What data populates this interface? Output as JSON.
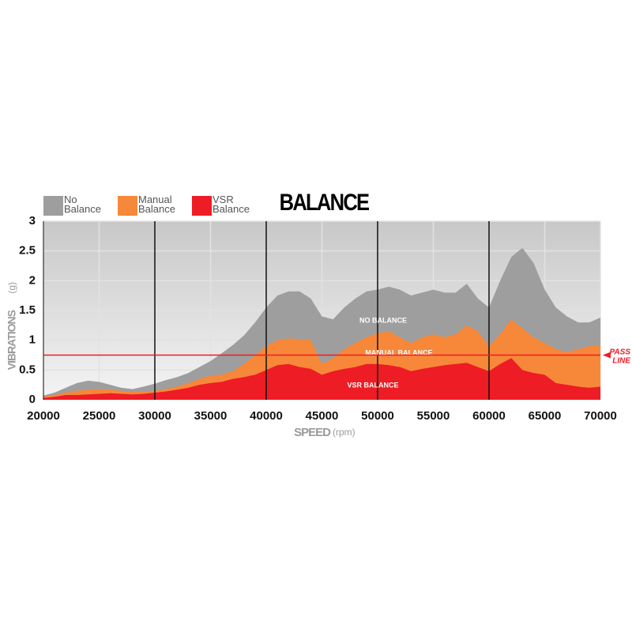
{
  "chart_data": {
    "type": "area",
    "title": "BALANCE",
    "x_label": "SPEED",
    "x_label_unit": "(rpm)",
    "y_label": "VIBRATIONS",
    "y_label_unit": "(g)",
    "x": [
      20000,
      21000,
      22000,
      23000,
      24000,
      25000,
      26000,
      27000,
      28000,
      29000,
      30000,
      31000,
      32000,
      33000,
      34000,
      35000,
      36000,
      37000,
      38000,
      39000,
      40000,
      41000,
      42000,
      43000,
      44000,
      45000,
      46000,
      47000,
      48000,
      49000,
      50000,
      51000,
      52000,
      53000,
      54000,
      55000,
      56000,
      57000,
      58000,
      59000,
      60000,
      61000,
      62000,
      63000,
      64000,
      65000,
      66000,
      67000,
      68000,
      69000,
      70000
    ],
    "series": [
      {
        "name": "No Balance",
        "color": "#9e9e9e",
        "values": [
          0.07,
          0.12,
          0.2,
          0.28,
          0.32,
          0.3,
          0.25,
          0.2,
          0.18,
          0.22,
          0.27,
          0.33,
          0.38,
          0.45,
          0.55,
          0.65,
          0.78,
          0.92,
          1.08,
          1.3,
          1.55,
          1.75,
          1.82,
          1.82,
          1.7,
          1.4,
          1.35,
          1.55,
          1.7,
          1.82,
          1.85,
          1.9,
          1.85,
          1.75,
          1.8,
          1.85,
          1.8,
          1.8,
          1.95,
          1.7,
          1.55,
          2.0,
          2.4,
          2.55,
          2.3,
          1.85,
          1.55,
          1.4,
          1.3,
          1.3,
          1.38
        ]
      },
      {
        "name": "Manual Balance",
        "color": "#f7883a",
        "values": [
          0.05,
          0.08,
          0.12,
          0.15,
          0.17,
          0.18,
          0.17,
          0.15,
          0.13,
          0.14,
          0.15,
          0.18,
          0.22,
          0.28,
          0.35,
          0.4,
          0.42,
          0.48,
          0.6,
          0.75,
          0.9,
          1.0,
          1.03,
          1.02,
          1.0,
          0.6,
          0.7,
          0.85,
          0.95,
          1.05,
          1.12,
          1.15,
          1.05,
          0.95,
          1.05,
          1.1,
          1.05,
          1.1,
          1.25,
          1.15,
          0.9,
          1.1,
          1.35,
          1.2,
          1.05,
          0.95,
          0.85,
          0.8,
          0.85,
          0.9,
          0.92
        ]
      },
      {
        "name": "VSR Balance",
        "color": "#ee1c25",
        "values": [
          0.03,
          0.05,
          0.08,
          0.08,
          0.09,
          0.1,
          0.11,
          0.1,
          0.09,
          0.1,
          0.12,
          0.14,
          0.17,
          0.2,
          0.25,
          0.28,
          0.3,
          0.35,
          0.38,
          0.42,
          0.5,
          0.58,
          0.6,
          0.55,
          0.52,
          0.42,
          0.48,
          0.52,
          0.55,
          0.6,
          0.6,
          0.58,
          0.55,
          0.48,
          0.52,
          0.55,
          0.58,
          0.6,
          0.62,
          0.55,
          0.48,
          0.6,
          0.7,
          0.5,
          0.45,
          0.42,
          0.28,
          0.25,
          0.22,
          0.2,
          0.22
        ]
      }
    ],
    "annotations": [
      "NO BALANCE",
      "MANUAL BALANCE",
      "VSR BALANCE"
    ],
    "pass_line": {
      "value": 0.75,
      "label": "PASS LINE",
      "color": "#ee1c25"
    },
    "xlim": [
      20000,
      70000
    ],
    "ylim": [
      0,
      3
    ],
    "xticks": [
      20000,
      25000,
      30000,
      35000,
      40000,
      45000,
      50000,
      55000,
      60000,
      65000,
      70000
    ],
    "yticks": [
      0,
      0.5,
      1,
      1.5,
      2,
      2.5,
      3
    ],
    "grid": true
  }
}
